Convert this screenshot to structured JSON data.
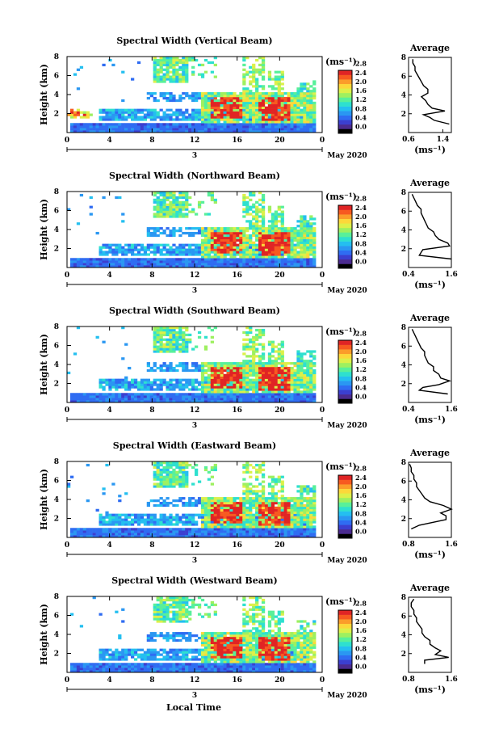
{
  "figure": {
    "x_axis_label": "Local Time",
    "date_label": "May 2020",
    "day_label": "3",
    "time_ticks": [
      "0",
      "4",
      "8",
      "12",
      "16",
      "20",
      "0"
    ],
    "height_ticks": [
      "2",
      "4",
      "6",
      "8"
    ],
    "y_axis_label": "Height (km)",
    "colorbar_unit": "(ms⁻¹)",
    "average_title": "Average",
    "average_unit": "(ms⁻¹)"
  },
  "colorbar": {
    "colors": [
      "#000000",
      "#4b2b90",
      "#3b3fd0",
      "#2f6cf2",
      "#2a97f2",
      "#24bff0",
      "#2ee0cf",
      "#58f09a",
      "#9ef060",
      "#dcf04a",
      "#fcd83a",
      "#fb9d2a",
      "#f75a20",
      "#e02424"
    ]
  },
  "chart_data": [
    {
      "type": "heatmap",
      "title": "Spectral Width (Vertical Beam)",
      "xlabel": "",
      "ylabel": "Height (km)",
      "xlim": [
        0,
        24
      ],
      "ylim": [
        0,
        8
      ],
      "colorbar_label": "(ms⁻¹)",
      "colorbar_ticks": [
        "0.0",
        "0.4",
        "0.8",
        "1.2",
        "1.6",
        "2.0",
        "2.4",
        "2.8"
      ]
    },
    {
      "type": "line",
      "title": "Average",
      "xlabel": "(ms⁻¹)",
      "ylabel": "",
      "xlim": [
        0.6,
        1.6
      ],
      "ylim": [
        0,
        8
      ],
      "xticks": [
        "0.6",
        "1.4"
      ],
      "height": [
        0.9,
        1.3,
        1.6,
        1.9,
        2.3,
        2.6,
        3.0,
        3.4,
        3.8,
        4.2,
        4.6,
        5.0,
        5.4,
        5.8,
        6.2,
        6.6,
        7.0,
        7.4,
        7.8
      ],
      "values": [
        1.55,
        1.2,
        1.1,
        0.95,
        1.45,
        1.15,
        1.05,
        1.0,
        0.9,
        1.05,
        1.05,
        0.95,
        0.9,
        0.85,
        0.8,
        0.75,
        0.75,
        0.7,
        0.7
      ]
    },
    {
      "type": "heatmap",
      "title": "Spectral Width (Northward Beam)",
      "xlabel": "",
      "ylabel": "Height (km)",
      "xlim": [
        0,
        24
      ],
      "ylim": [
        0,
        8
      ],
      "colorbar_label": "(ms⁻¹)",
      "colorbar_ticks": [
        "0.0",
        "0.4",
        "0.8",
        "1.2",
        "1.6",
        "2.0",
        "2.4",
        "2.8"
      ]
    },
    {
      "type": "line",
      "title": "Average",
      "xlabel": "(ms⁻¹)",
      "ylabel": "",
      "xlim": [
        0.4,
        1.6
      ],
      "ylim": [
        0,
        8
      ],
      "xticks": [
        "0.4",
        "1.6"
      ],
      "height": [
        0.9,
        1.3,
        1.6,
        1.9,
        2.3,
        2.6,
        3.0,
        3.4,
        3.8,
        4.2,
        4.6,
        5.0,
        5.4,
        5.8,
        6.2,
        6.6,
        7.0,
        7.4,
        7.8
      ],
      "values": [
        1.6,
        0.7,
        0.75,
        0.8,
        1.55,
        1.5,
        1.25,
        1.15,
        1.1,
        0.95,
        0.9,
        0.85,
        0.8,
        0.75,
        0.75,
        0.65,
        0.6,
        0.55,
        0.5
      ]
    },
    {
      "type": "heatmap",
      "title": "Spectral Width (Southward Beam)",
      "xlabel": "",
      "ylabel": "Height (km)",
      "xlim": [
        0,
        24
      ],
      "ylim": [
        0,
        8
      ],
      "colorbar_label": "(ms⁻¹)",
      "colorbar_ticks": [
        "0.0",
        "0.4",
        "0.8",
        "1.2",
        "1.6",
        "2.0",
        "2.4",
        "2.8"
      ]
    },
    {
      "type": "line",
      "title": "Average",
      "xlabel": "(ms⁻¹)",
      "ylabel": "",
      "xlim": [
        0.4,
        1.6
      ],
      "ylim": [
        0,
        8
      ],
      "xticks": [
        "0.4",
        "1.6"
      ],
      "height": [
        0.9,
        1.3,
        1.6,
        1.9,
        2.3,
        2.6,
        3.0,
        3.4,
        3.8,
        4.2,
        4.6,
        5.0,
        5.4,
        5.8,
        6.2,
        6.6,
        7.0,
        7.4,
        7.8
      ],
      "values": [
        1.5,
        0.7,
        0.8,
        1.25,
        1.55,
        1.3,
        1.25,
        1.1,
        1.1,
        0.95,
        0.9,
        0.85,
        0.85,
        0.75,
        0.7,
        0.65,
        0.6,
        0.55,
        0.5
      ]
    },
    {
      "type": "heatmap",
      "title": "Spectral Width (Eastward Beam)",
      "xlabel": "",
      "ylabel": "Height (km)",
      "xlim": [
        0,
        24
      ],
      "ylim": [
        0,
        8
      ],
      "colorbar_label": "(ms⁻¹)",
      "colorbar_ticks": [
        "0.0",
        "0.4",
        "0.8",
        "1.2",
        "1.6",
        "2.0",
        "2.4",
        "2.8"
      ]
    },
    {
      "type": "line",
      "title": "Average",
      "xlabel": "(ms⁻¹)",
      "ylabel": "",
      "xlim": [
        0.8,
        1.6
      ],
      "ylim": [
        0,
        8
      ],
      "xticks": [
        "0.8",
        "1.6"
      ],
      "height": [
        0.9,
        1.3,
        1.6,
        1.9,
        2.3,
        2.6,
        3.0,
        3.4,
        3.8,
        4.2,
        4.6,
        5.0,
        5.4,
        5.8,
        6.2,
        6.6,
        7.0,
        7.4,
        7.8
      ],
      "values": [
        0.85,
        1.0,
        1.25,
        1.5,
        1.5,
        1.4,
        1.6,
        1.45,
        1.2,
        1.1,
        1.05,
        1.0,
        0.95,
        0.95,
        0.9,
        0.9,
        0.85,
        0.85,
        0.82
      ]
    },
    {
      "type": "heatmap",
      "title": "Spectral Width (Westward Beam)",
      "xlabel": "Local Time",
      "ylabel": "Height (km)",
      "xlim": [
        0,
        24
      ],
      "ylim": [
        0,
        8
      ],
      "colorbar_label": "(ms⁻¹)",
      "colorbar_ticks": [
        "0.0",
        "0.4",
        "0.8",
        "1.2",
        "1.6",
        "2.0",
        "2.4",
        "2.8"
      ]
    },
    {
      "type": "line",
      "title": "Average",
      "xlabel": "(ms⁻¹)",
      "ylabel": "",
      "xlim": [
        0.8,
        1.6
      ],
      "ylim": [
        0,
        8
      ],
      "xticks": [
        "0.8",
        "1.6"
      ],
      "height": [
        0.9,
        1.3,
        1.6,
        1.9,
        2.3,
        2.6,
        3.0,
        3.4,
        3.8,
        4.2,
        4.6,
        5.0,
        5.4,
        5.8,
        6.2,
        6.6,
        7.0,
        7.4,
        7.8
      ],
      "values": [
        1.1,
        1.1,
        1.55,
        1.3,
        1.4,
        1.3,
        1.2,
        1.2,
        1.1,
        1.05,
        1.05,
        1.0,
        0.95,
        0.95,
        0.9,
        0.9,
        0.85,
        0.85,
        0.9
      ]
    }
  ]
}
